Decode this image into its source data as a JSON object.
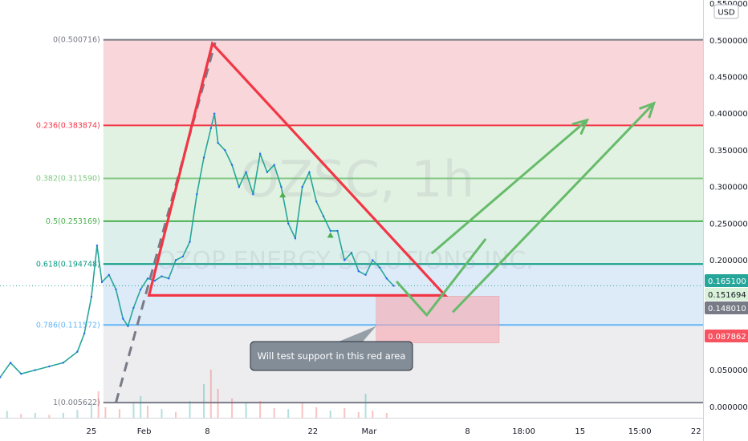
{
  "chart_data": {
    "type": "line",
    "symbol_watermark": "OZSC, 1h",
    "company_watermark": "OZOP ENERGY SOLUTIONS INC.",
    "currency": "USD",
    "price_scale": {
      "min": -0.015,
      "max": 0.555,
      "ticks": [
        {
          "value": 0.0,
          "label": "0.000000"
        },
        {
          "value": 0.05,
          "label": "0.050000"
        },
        {
          "value": 0.1,
          "label": "0.100000"
        },
        {
          "value": 0.15,
          "label": "0.150000"
        },
        {
          "value": 0.2,
          "label": "0.200000"
        },
        {
          "value": 0.25,
          "label": "0.250000"
        },
        {
          "value": 0.3,
          "label": "0.300000"
        },
        {
          "value": 0.35,
          "label": "0.350000"
        },
        {
          "value": 0.4,
          "label": "0.400000"
        },
        {
          "value": 0.45,
          "label": "0.450000"
        },
        {
          "value": 0.5,
          "label": "0.500000"
        },
        {
          "value": 0.55,
          "label": "0.550000"
        }
      ]
    },
    "time_scale": {
      "min": 0,
      "max": 100,
      "ticks": [
        {
          "t": 13,
          "label": "25"
        },
        {
          "t": 20.5,
          "label": "Feb"
        },
        {
          "t": 29.5,
          "label": "8"
        },
        {
          "t": 44.5,
          "label": "22"
        },
        {
          "t": 52.5,
          "label": "Mar"
        },
        {
          "t": 66.5,
          "label": "8"
        },
        {
          "t": 74.5,
          "label": "18:00"
        },
        {
          "t": 82.5,
          "label": "15"
        },
        {
          "t": 91,
          "label": "15:00"
        },
        {
          "t": 99,
          "label": "22"
        }
      ]
    },
    "fib_levels": [
      {
        "ratio": "0",
        "label": "0(0.500716)",
        "price": 0.500716,
        "color": "#787b86"
      },
      {
        "ratio": "0.236",
        "label": "0.236(0.383874)",
        "price": 0.383874,
        "color": "#f23645"
      },
      {
        "ratio": "0.382",
        "label": "0.382(0.311590)",
        "price": 0.31159,
        "color": "#81c784"
      },
      {
        "ratio": "0.5",
        "label": "0.5(0.253169)",
        "price": 0.253169,
        "color": "#4caf50"
      },
      {
        "ratio": "0.618",
        "label": "0.618(0.194748)",
        "price": 0.194748,
        "color": "#089981"
      },
      {
        "ratio": "0.786",
        "label": "0.786(0.111572)",
        "price": 0.111572,
        "color": "#64b5f6"
      },
      {
        "ratio": "1",
        "label": "1(0.005622)",
        "price": 0.005622,
        "color": "#787b86"
      }
    ],
    "price_badges": [
      {
        "label": "0.165100",
        "price": 0.1651,
        "bg": "#26a69a",
        "fg": "#ffffff"
      },
      {
        "label": "0.151694",
        "price": 0.151694,
        "bg": "#d9f2d9",
        "fg": "#131722"
      },
      {
        "label": "0.148010",
        "price": 0.14801,
        "bg": "#787b86",
        "fg": "#ffffff"
      },
      {
        "label": "0.087862",
        "price": 0.087862,
        "bg": "#f7525f",
        "fg": "#ffffff"
      }
    ],
    "price_series": [
      {
        "t": 0,
        "p": 0.04
      },
      {
        "t": 1.5,
        "p": 0.06
      },
      {
        "t": 3,
        "p": 0.045
      },
      {
        "t": 5,
        "p": 0.05
      },
      {
        "t": 7,
        "p": 0.055
      },
      {
        "t": 9,
        "p": 0.06
      },
      {
        "t": 11,
        "p": 0.075
      },
      {
        "t": 12,
        "p": 0.1
      },
      {
        "t": 13,
        "p": 0.15
      },
      {
        "t": 13.8,
        "p": 0.22
      },
      {
        "t": 14.5,
        "p": 0.17
      },
      {
        "t": 15.5,
        "p": 0.18
      },
      {
        "t": 16.5,
        "p": 0.16
      },
      {
        "t": 17.5,
        "p": 0.12
      },
      {
        "t": 18.2,
        "p": 0.11
      },
      {
        "t": 19,
        "p": 0.135
      },
      {
        "t": 20,
        "p": 0.16
      },
      {
        "t": 21,
        "p": 0.175
      },
      {
        "t": 22,
        "p": 0.172
      },
      {
        "t": 23,
        "p": 0.178
      },
      {
        "t": 24,
        "p": 0.175
      },
      {
        "t": 25,
        "p": 0.2
      },
      {
        "t": 26,
        "p": 0.205
      },
      {
        "t": 27,
        "p": 0.225
      },
      {
        "t": 28,
        "p": 0.29
      },
      {
        "t": 29,
        "p": 0.34
      },
      {
        "t": 30,
        "p": 0.38
      },
      {
        "t": 30.5,
        "p": 0.4
      },
      {
        "t": 31,
        "p": 0.36
      },
      {
        "t": 32,
        "p": 0.35
      },
      {
        "t": 33,
        "p": 0.33
      },
      {
        "t": 34,
        "p": 0.3
      },
      {
        "t": 35,
        "p": 0.32
      },
      {
        "t": 36,
        "p": 0.29
      },
      {
        "t": 37,
        "p": 0.345
      },
      {
        "t": 38,
        "p": 0.32
      },
      {
        "t": 39,
        "p": 0.33
      },
      {
        "t": 40,
        "p": 0.3
      },
      {
        "t": 41,
        "p": 0.25
      },
      {
        "t": 42,
        "p": 0.23
      },
      {
        "t": 43,
        "p": 0.3
      },
      {
        "t": 44,
        "p": 0.32
      },
      {
        "t": 45,
        "p": 0.28
      },
      {
        "t": 46,
        "p": 0.26
      },
      {
        "t": 47,
        "p": 0.24
      },
      {
        "t": 48,
        "p": 0.24
      },
      {
        "t": 49,
        "p": 0.2
      },
      {
        "t": 50,
        "p": 0.21
      },
      {
        "t": 51,
        "p": 0.185
      },
      {
        "t": 52,
        "p": 0.18
      },
      {
        "t": 53,
        "p": 0.2
      },
      {
        "t": 54,
        "p": 0.19
      },
      {
        "t": 55,
        "p": 0.175
      },
      {
        "t": 56,
        "p": 0.165
      }
    ],
    "volume_bars": [
      {
        "t": 1,
        "v": 0.14,
        "dir": "up"
      },
      {
        "t": 3,
        "v": 0.08,
        "dir": "down"
      },
      {
        "t": 5,
        "v": 0.1,
        "dir": "up"
      },
      {
        "t": 7,
        "v": 0.06,
        "dir": "down"
      },
      {
        "t": 9,
        "v": 0.1,
        "dir": "up"
      },
      {
        "t": 11,
        "v": 0.16,
        "dir": "up"
      },
      {
        "t": 13,
        "v": 0.3,
        "dir": "up"
      },
      {
        "t": 14,
        "v": 0.55,
        "dir": "down"
      },
      {
        "t": 15,
        "v": 0.22,
        "dir": "down"
      },
      {
        "t": 17,
        "v": 0.18,
        "dir": "down"
      },
      {
        "t": 19,
        "v": 0.3,
        "dir": "up"
      },
      {
        "t": 20,
        "v": 0.45,
        "dir": "up"
      },
      {
        "t": 21,
        "v": 0.25,
        "dir": "down"
      },
      {
        "t": 23,
        "v": 0.18,
        "dir": "up"
      },
      {
        "t": 25,
        "v": 0.12,
        "dir": "down"
      },
      {
        "t": 27,
        "v": 0.35,
        "dir": "up"
      },
      {
        "t": 29,
        "v": 0.7,
        "dir": "up"
      },
      {
        "t": 30,
        "v": 1.0,
        "dir": "down"
      },
      {
        "t": 31,
        "v": 0.6,
        "dir": "down"
      },
      {
        "t": 33,
        "v": 0.4,
        "dir": "down"
      },
      {
        "t": 35,
        "v": 0.3,
        "dir": "up"
      },
      {
        "t": 37,
        "v": 0.35,
        "dir": "down"
      },
      {
        "t": 39,
        "v": 0.2,
        "dir": "down"
      },
      {
        "t": 41,
        "v": 0.18,
        "dir": "up"
      },
      {
        "t": 43,
        "v": 0.3,
        "dir": "down"
      },
      {
        "t": 45,
        "v": 0.22,
        "dir": "down"
      },
      {
        "t": 47,
        "v": 0.15,
        "dir": "up"
      },
      {
        "t": 49,
        "v": 0.2,
        "dir": "down"
      },
      {
        "t": 51,
        "v": 0.12,
        "dir": "down"
      },
      {
        "t": 52,
        "v": 0.5,
        "dir": "up"
      },
      {
        "t": 53,
        "v": 0.15,
        "dir": "down"
      },
      {
        "t": 55,
        "v": 0.1,
        "dir": "down"
      }
    ],
    "drawings": {
      "triangle": {
        "color": "#f23645",
        "points": [
          {
            "t": 30.2,
            "p": 0.4955
          },
          {
            "t": 63.3,
            "p": 0.152
          },
          {
            "t": 21.2,
            "p": 0.152
          }
        ]
      },
      "dashed_trend": {
        "color": "#787b86",
        "from": {
          "t": 16.5,
          "p": 0.006
        },
        "to": {
          "t": 30.6,
          "p": 0.497
        }
      },
      "support_zone": {
        "color": "#f7a8b0",
        "t1": 53.5,
        "t2": 71,
        "p_top": 0.151,
        "p_bottom": 0.087
      },
      "arrows": [
        {
          "color": "#66bb6a",
          "points": [
            {
              "t": 56.5,
              "p": 0.17
            },
            {
              "t": 60.7,
              "p": 0.125
            },
            {
              "t": 69,
              "p": 0.228
            }
          ]
        },
        {
          "color": "#66bb6a",
          "from": {
            "t": 61.5,
            "p": 0.21
          },
          "to": {
            "t": 83.5,
            "p": 0.391
          }
        },
        {
          "color": "#66bb6a",
          "from": {
            "t": 64.5,
            "p": 0.13
          },
          "to": {
            "t": 93,
            "p": 0.414
          }
        }
      ],
      "callout": {
        "text": "Will test support in this red area",
        "anchor": {
          "t": 53.5,
          "p": 0.11
        }
      },
      "signal_markers": [
        {
          "t": 40.2,
          "p": 0.29
        },
        {
          "t": 47,
          "p": 0.235
        }
      ]
    }
  }
}
